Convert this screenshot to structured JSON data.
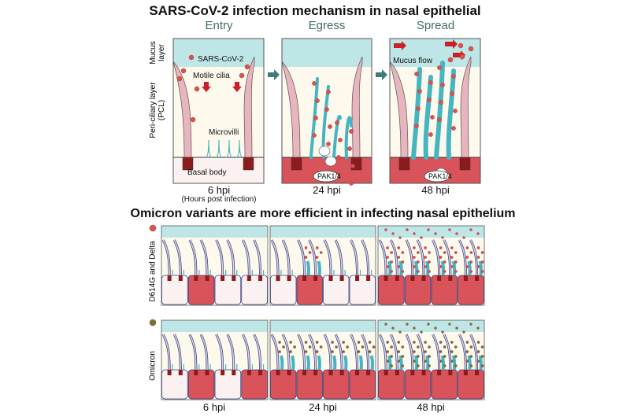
{
  "top": {
    "title": "SARS-CoV-2 infection mechanism in nasal epithelial",
    "stages": [
      "Entry",
      "Egress",
      "Spread"
    ],
    "times": [
      "6 hpi",
      "24 hpi",
      "48 hpi"
    ],
    "time_note": "(Hours post infection)",
    "layers": {
      "mucus": [
        "Mucus",
        "layer"
      ],
      "pcl": [
        "Peri-ciliary layer",
        "(PCL)"
      ]
    },
    "annotations": {
      "virus": "SARS-CoV-2",
      "cilia": "Motile cilia",
      "microvilli": "Microvilli",
      "basal": "Basal body",
      "kinase": "PAK1/4",
      "flow": "Mucus flow"
    }
  },
  "bottom": {
    "title": "Omicron variants are more efficient in infecting nasal epithelium",
    "rows": [
      {
        "label": "D614G and Delta",
        "virus_color": "#d9534f",
        "infected_cells": [
          [
            false,
            true,
            false,
            false
          ],
          [
            false,
            true,
            false,
            false
          ],
          [
            true,
            true,
            true,
            true
          ]
        ]
      },
      {
        "label": "Omicron",
        "virus_color": "#6b7a2e",
        "infected_cells": [
          [
            false,
            true,
            false,
            true
          ],
          [
            true,
            true,
            true,
            true
          ],
          [
            true,
            true,
            true,
            true
          ]
        ]
      }
    ],
    "times": [
      "6 hpi",
      "24 hpi",
      "48 hpi"
    ]
  },
  "colors": {
    "mucus": "#bfe6e6",
    "pcl": "#fdf9ec",
    "infected": "#d9535a",
    "uninfected": "#fbf1f1",
    "cilia": "#e8b4bd",
    "virus": "#d9534f",
    "basal_body": "#8b1c1c",
    "microvilli": "#46b5c2",
    "arrow": "#3c7d7a",
    "flow_arrow": "#c9202a"
  }
}
